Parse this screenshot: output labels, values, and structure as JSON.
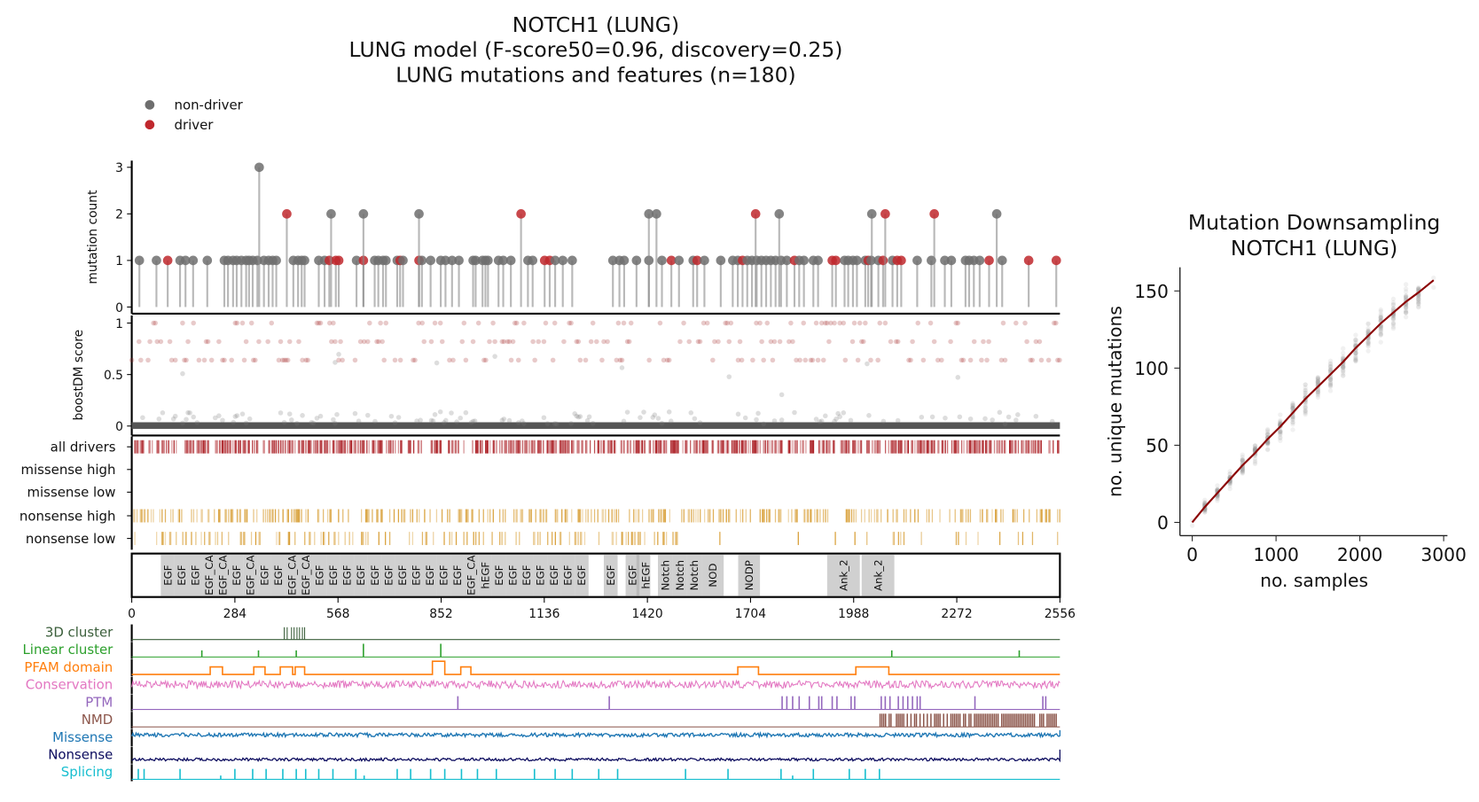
{
  "chart_data": [
    {
      "type": "scatter",
      "title": [
        "NOTCH1 (LUNG)",
        "LUNG model (F-score50=0.96, discovery=0.25)",
        "LUNG mutations and features (n=180)"
      ],
      "legend": {
        "placement": "top-left",
        "entries": [
          {
            "label": "non-driver",
            "color": "#6e6e6e"
          },
          {
            "label": "driver",
            "color": "#c0282d"
          }
        ]
      },
      "xlim": [
        0,
        2556
      ],
      "xticks": [
        "0",
        "284",
        "568",
        "852",
        "1136",
        "1420",
        "1704",
        "1988",
        "2272",
        "2556"
      ],
      "lollipop": {
        "ylabel": "mutation count",
        "yticks": [
          "0",
          "1",
          "2",
          "3"
        ],
        "ylim": [
          0,
          3
        ],
        "count3": [
          [
            351,
            0
          ]
        ],
        "count2": [
          [
            427,
            1
          ],
          [
            549,
            0
          ],
          [
            638,
            0
          ],
          [
            791,
            0
          ],
          [
            1072,
            1
          ],
          [
            1424,
            0
          ],
          [
            1445,
            0
          ],
          [
            1718,
            1
          ],
          [
            1783,
            0
          ],
          [
            2038,
            0
          ],
          [
            2075,
            1
          ],
          [
            2210,
            1
          ],
          [
            2382,
            0
          ]
        ],
        "count1": [
          [
            21,
            0
          ],
          [
            68,
            0
          ],
          [
            99,
            1
          ],
          [
            133,
            0
          ],
          [
            148,
            0
          ],
          [
            169,
            0
          ],
          [
            208,
            0
          ],
          [
            255,
            0
          ],
          [
            265,
            0
          ],
          [
            279,
            0
          ],
          [
            289,
            0
          ],
          [
            302,
            0
          ],
          [
            315,
            0
          ],
          [
            323,
            0
          ],
          [
            333,
            0
          ],
          [
            346,
            0
          ],
          [
            364,
            0
          ],
          [
            377,
            0
          ],
          [
            388,
            0
          ],
          [
            398,
            0
          ],
          [
            445,
            0
          ],
          [
            458,
            0
          ],
          [
            468,
            0
          ],
          [
            476,
            0
          ],
          [
            515,
            0
          ],
          [
            531,
            0
          ],
          [
            544,
            1
          ],
          [
            562,
            1
          ],
          [
            570,
            1
          ],
          [
            619,
            0
          ],
          [
            638,
            1
          ],
          [
            669,
            0
          ],
          [
            679,
            0
          ],
          [
            692,
            0
          ],
          [
            700,
            0
          ],
          [
            731,
            0
          ],
          [
            739,
            1
          ],
          [
            747,
            0
          ],
          [
            791,
            1
          ],
          [
            799,
            0
          ],
          [
            823,
            0
          ],
          [
            851,
            0
          ],
          [
            864,
            0
          ],
          [
            882,
            0
          ],
          [
            901,
            0
          ],
          [
            940,
            0
          ],
          [
            947,
            0
          ],
          [
            966,
            0
          ],
          [
            974,
            0
          ],
          [
            981,
            0
          ],
          [
            1010,
            0
          ],
          [
            1023,
            0
          ],
          [
            1044,
            0
          ],
          [
            1091,
            0
          ],
          [
            1104,
            0
          ],
          [
            1137,
            1
          ],
          [
            1151,
            1
          ],
          [
            1166,
            0
          ],
          [
            1187,
            0
          ],
          [
            1213,
            0
          ],
          [
            1325,
            0
          ],
          [
            1343,
            0
          ],
          [
            1356,
            0
          ],
          [
            1390,
            0
          ],
          [
            1424,
            0
          ],
          [
            1460,
            0
          ],
          [
            1486,
            1
          ],
          [
            1507,
            0
          ],
          [
            1546,
            0
          ],
          [
            1557,
            1
          ],
          [
            1577,
            0
          ],
          [
            1622,
            0
          ],
          [
            1655,
            0
          ],
          [
            1669,
            0
          ],
          [
            1682,
            1
          ],
          [
            1695,
            0
          ],
          [
            1708,
            0
          ],
          [
            1721,
            0
          ],
          [
            1734,
            0
          ],
          [
            1747,
            0
          ],
          [
            1760,
            0
          ],
          [
            1773,
            0
          ],
          [
            1788,
            0
          ],
          [
            1804,
            0
          ],
          [
            1825,
            1
          ],
          [
            1838,
            0
          ],
          [
            1851,
            0
          ],
          [
            1877,
            0
          ],
          [
            1890,
            0
          ],
          [
            1929,
            1
          ],
          [
            1939,
            1
          ],
          [
            1963,
            0
          ],
          [
            1973,
            0
          ],
          [
            1986,
            0
          ],
          [
            1997,
            0
          ],
          [
            2020,
            0
          ],
          [
            2028,
            1
          ],
          [
            2036,
            0
          ],
          [
            2056,
            0
          ],
          [
            2069,
            1
          ],
          [
            2095,
            0
          ],
          [
            2108,
            1
          ],
          [
            2119,
            1
          ],
          [
            2163,
            0
          ],
          [
            2202,
            0
          ],
          [
            2239,
            0
          ],
          [
            2257,
            0
          ],
          [
            2296,
            0
          ],
          [
            2306,
            0
          ],
          [
            2319,
            0
          ],
          [
            2335,
            0
          ],
          [
            2361,
            1
          ],
          [
            2397,
            0
          ],
          [
            2470,
            1
          ],
          [
            2546,
            1
          ]
        ]
      },
      "boostdm": {
        "ylabel": "boostDM score",
        "yticks": [
          "0",
          "0.5",
          "1"
        ],
        "ylim": [
          0,
          1
        ],
        "driver_color": "#a52a2a",
        "nondriver_color": "#555555"
      },
      "driver_tracks": [
        {
          "label": "all drivers",
          "color": "#a50f15"
        },
        {
          "label": "missense high",
          "color": "#a50f15"
        },
        {
          "label": "missense low",
          "color": "#a50f15"
        },
        {
          "label": "nonsense high",
          "color": "#d69a2d"
        },
        {
          "label": "nonsense low",
          "color": "#d69a2d"
        }
      ],
      "domains": [
        {
          "label": "EGF",
          "start": 80,
          "end": 118
        },
        {
          "label": "EGF",
          "start": 118,
          "end": 156
        },
        {
          "label": "EGF",
          "start": 156,
          "end": 194
        },
        {
          "label": "EGF_CA",
          "start": 194,
          "end": 232
        },
        {
          "label": "EGF_CA",
          "start": 232,
          "end": 270
        },
        {
          "label": "EGF",
          "start": 270,
          "end": 308
        },
        {
          "label": "EGF_CA",
          "start": 308,
          "end": 346
        },
        {
          "label": "EGF",
          "start": 346,
          "end": 384
        },
        {
          "label": "EGF",
          "start": 384,
          "end": 422
        },
        {
          "label": "EGF_CA",
          "start": 422,
          "end": 460
        },
        {
          "label": "EGF_CA",
          "start": 460,
          "end": 498
        },
        {
          "label": "EGF",
          "start": 498,
          "end": 536
        },
        {
          "label": "EGF",
          "start": 536,
          "end": 574
        },
        {
          "label": "EGF",
          "start": 574,
          "end": 612
        },
        {
          "label": "EGF",
          "start": 612,
          "end": 650
        },
        {
          "label": "EGF",
          "start": 650,
          "end": 688
        },
        {
          "label": "EGF",
          "start": 688,
          "end": 726
        },
        {
          "label": "EGF",
          "start": 726,
          "end": 764
        },
        {
          "label": "EGF",
          "start": 764,
          "end": 802
        },
        {
          "label": "EGF",
          "start": 802,
          "end": 840
        },
        {
          "label": "EGF",
          "start": 840,
          "end": 878
        },
        {
          "label": "EGF",
          "start": 878,
          "end": 916
        },
        {
          "label": "EGF_CA",
          "start": 916,
          "end": 954
        },
        {
          "label": "hEGF",
          "start": 954,
          "end": 992
        },
        {
          "label": "EGF",
          "start": 992,
          "end": 1030
        },
        {
          "label": "EGF",
          "start": 1030,
          "end": 1068
        },
        {
          "label": "EGF",
          "start": 1068,
          "end": 1106
        },
        {
          "label": "EGF",
          "start": 1106,
          "end": 1144
        },
        {
          "label": "EGF",
          "start": 1144,
          "end": 1182
        },
        {
          "label": "EGF",
          "start": 1182,
          "end": 1220
        },
        {
          "label": "EGF",
          "start": 1220,
          "end": 1258
        },
        {
          "label": "EGF",
          "start": 1300,
          "end": 1338
        },
        {
          "label": "EGF",
          "start": 1360,
          "end": 1398
        },
        {
          "label": "hEGF",
          "start": 1390,
          "end": 1428
        },
        {
          "label": "Notch",
          "start": 1449,
          "end": 1489
        },
        {
          "label": "Notch",
          "start": 1489,
          "end": 1529
        },
        {
          "label": "Notch",
          "start": 1529,
          "end": 1569
        },
        {
          "label": "NOD",
          "start": 1569,
          "end": 1630
        },
        {
          "label": "NODP",
          "start": 1670,
          "end": 1730
        },
        {
          "label": "Ank_2",
          "start": 1915,
          "end": 2005
        },
        {
          "label": "Ank_2",
          "start": 2010,
          "end": 2100
        }
      ],
      "features": {
        "labels": [
          {
            "label": "3D cluster",
            "color": "#3a5e3a"
          },
          {
            "label": "Linear cluster",
            "color": "#2ca02c"
          },
          {
            "label": "PFAM domain",
            "color": "#ff7f0e"
          },
          {
            "label": "Conservation",
            "color": "#e377c2"
          },
          {
            "label": "PTM",
            "color": "#9467bd"
          },
          {
            "label": "NMD",
            "color": "#8c564b"
          },
          {
            "label": "Missense",
            "color": "#1f77b4"
          },
          {
            "label": "Nonsense",
            "color": "#0b0b5e"
          },
          {
            "label": "Splicing",
            "color": "#17becf"
          }
        ],
        "cluster_3d": [
          420,
          428,
          440,
          447,
          455,
          462,
          470,
          476
        ],
        "linear_cluster": [
          193,
          349,
          453,
          638,
          851,
          2093,
          2444
        ],
        "pfam_intervals": [
          [
            216,
            250
          ],
          [
            336,
            367
          ],
          [
            409,
            443
          ],
          [
            450,
            476
          ],
          [
            828,
            862
          ],
          [
            906,
            934
          ],
          [
            1669,
            1726
          ],
          [
            1994,
            2085
          ]
        ],
        "ptm_sites": [
          898,
          1315,
          1791,
          1804,
          1820,
          1838,
          1866,
          1892,
          1900,
          1929,
          1942,
          1981,
          1991,
          2064,
          2075,
          2088,
          2111,
          2124,
          2137,
          2150,
          2163,
          2171,
          2322,
          2509,
          2517
        ],
        "nmd_start": 2059,
        "splicing_sites": [
          18,
          34,
          133,
          245,
          284,
          333,
          370,
          416,
          453,
          479,
          515,
          554,
          617,
          640,
          731,
          768,
          823,
          862,
          908,
          952,
          1004,
          1109,
          1166,
          1213,
          1286,
          1338,
          1525,
          1642,
          1788,
          1820,
          1877,
          1976,
          2020,
          2059
        ]
      }
    },
    {
      "type": "scatter",
      "title": [
        "Mutation Downsampling",
        "NOTCH1 (LUNG)"
      ],
      "xlabel": "no. samples",
      "ylabel": "no. unique mutations",
      "xlim": [
        -100,
        3050
      ],
      "ylim": [
        -8,
        165
      ],
      "xticks": [
        "0",
        "1000",
        "2000",
        "3000"
      ],
      "yticks": [
        "0",
        "50",
        "100",
        "150"
      ],
      "line_color": "#8b0000",
      "x": [
        0,
        150,
        300,
        450,
        600,
        750,
        900,
        1050,
        1200,
        1350,
        1500,
        1650,
        1800,
        1950,
        2100,
        2250,
        2400,
        2550,
        2700,
        2880
      ],
      "mean": [
        0,
        10,
        19,
        28,
        37,
        45,
        54,
        62,
        71,
        80,
        88,
        96,
        104,
        113,
        121,
        129,
        136,
        143,
        149,
        157
      ]
    }
  ]
}
